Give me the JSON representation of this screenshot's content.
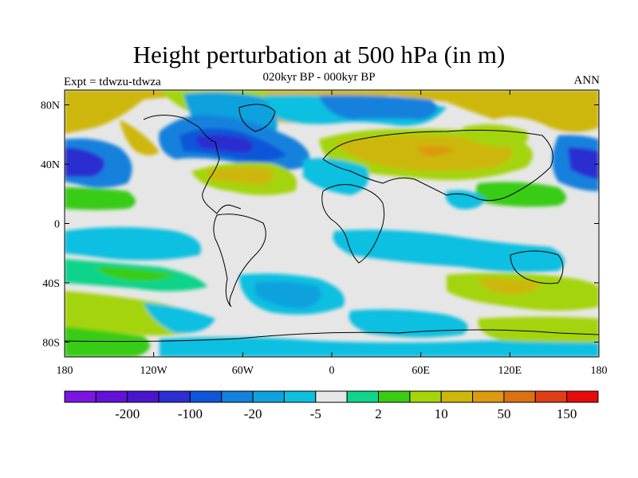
{
  "title": "Height perturbation at 500 hPa (in m)",
  "subtitle": "020kyr BP - 000kyr BP",
  "left_label": "Expt = tdwzu-tdwza",
  "right_label": "ANN",
  "map": {
    "lon_range": [
      -180,
      180
    ],
    "lat_range": [
      -90,
      90
    ],
    "lat_ticks": [
      {
        "value": 80,
        "label": "80N"
      },
      {
        "value": 40,
        "label": "40N"
      },
      {
        "value": 0,
        "label": "0"
      },
      {
        "value": -40,
        "label": "40S"
      },
      {
        "value": -80,
        "label": "80S"
      }
    ],
    "lon_ticks": [
      {
        "value": -180,
        "label": "180"
      },
      {
        "value": -120,
        "label": "120W"
      },
      {
        "value": -60,
        "label": "60W"
      },
      {
        "value": 0,
        "label": "0"
      },
      {
        "value": 60,
        "label": "60E"
      },
      {
        "value": 120,
        "label": "120E"
      },
      {
        "value": 180,
        "label": "180"
      }
    ]
  },
  "colorbar": {
    "colors": [
      "#7b16e0",
      "#6211d6",
      "#4a16cc",
      "#2b2ed0",
      "#0d56d9",
      "#1381dd",
      "#10a2dd",
      "#0fbfe0",
      "#e6e6e6",
      "#10d48a",
      "#39cc12",
      "#a4d40a",
      "#cdb70d",
      "#dd990f",
      "#dd7010",
      "#df3e16",
      "#e80b0b"
    ],
    "tick_labels": [
      {
        "after_box": 3,
        "label": "-200"
      },
      {
        "after_box": 5,
        "label": "-100"
      },
      {
        "after_box": 7,
        "label": "-20"
      },
      {
        "after_box": 9,
        "label": "-5"
      },
      {
        "after_box": 11,
        "label": "2"
      },
      {
        "after_box": 13,
        "label": "10"
      },
      {
        "after_box": 15,
        "label": "50"
      },
      {
        "after_box": 17,
        "label": "150"
      }
    ]
  }
}
